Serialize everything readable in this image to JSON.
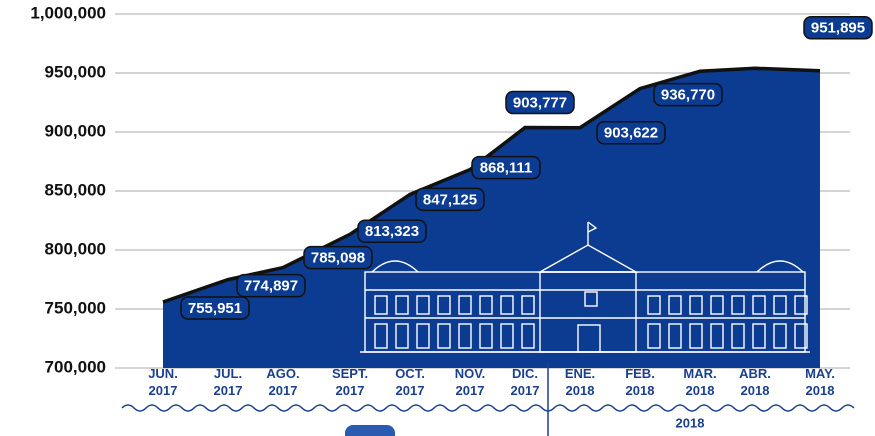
{
  "chart_data": {
    "type": "area",
    "categories": [
      "JUN. 2017",
      "JUL. 2017",
      "AGO. 2017",
      "SEPT. 2017",
      "OCT. 2017",
      "NOV. 2017",
      "DIC. 2017",
      "ENE. 2018",
      "FEB. 2018",
      "MAR. 2018",
      "ABR. 2018",
      "MAY. 2018"
    ],
    "values": [
      755951,
      774897,
      785098,
      813323,
      847125,
      868111,
      903777,
      903622,
      936770,
      951500,
      954000,
      951895
    ],
    "value_labels": [
      "755,951",
      "774,897",
      "785,098",
      "813,323",
      "847,125",
      "868,111",
      "903,777",
      "903,622",
      "936,770",
      null,
      null,
      "951,895"
    ],
    "color": "#0b3c91",
    "line_color": "#111111",
    "group_label": "2018",
    "ylim": [
      700000,
      1000000
    ],
    "yticks": [
      {
        "value": 700000,
        "label": "700,000"
      },
      {
        "value": 750000,
        "label": "750,000"
      },
      {
        "value": 800000,
        "label": "800,000"
      },
      {
        "value": 850000,
        "label": "850,000"
      },
      {
        "value": 900000,
        "label": "900,000"
      },
      {
        "value": 950000,
        "label": "950,000"
      },
      {
        "value": 1000000,
        "label": "1,000,000"
      }
    ],
    "grid": true
  }
}
